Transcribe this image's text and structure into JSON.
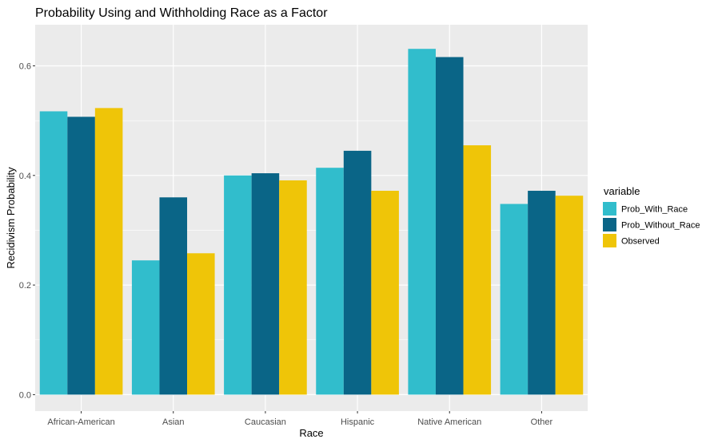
{
  "chart_data": {
    "type": "bar",
    "title": "Probability Using and Withholding Race as a Factor",
    "xlabel": "Race",
    "ylabel": "Recidivism Probability",
    "categories": [
      "African-American",
      "Asian",
      "Caucasian",
      "Hispanic",
      "Native American",
      "Other"
    ],
    "series": [
      {
        "name": "Prob_With_Race",
        "color": "#31BDCC",
        "values": [
          0.517,
          0.245,
          0.4,
          0.414,
          0.631,
          0.348
        ]
      },
      {
        "name": "Prob_Without_Race",
        "color": "#0A6587",
        "values": [
          0.507,
          0.36,
          0.404,
          0.445,
          0.616,
          0.372
        ]
      },
      {
        "name": "Observed",
        "color": "#EFC508",
        "values": [
          0.523,
          0.258,
          0.391,
          0.372,
          0.455,
          0.363
        ]
      }
    ],
    "ylim": [
      -0.03,
      0.675
    ],
    "yticks": [
      "0.0",
      "0.2",
      "0.4",
      "0.6"
    ],
    "ytick_values": [
      0.0,
      0.2,
      0.4,
      0.6
    ],
    "grid": true,
    "legend": {
      "title": "variable",
      "position": "right"
    },
    "panel_background": "#EBEBEB",
    "grid_color": "#FFFFFF"
  }
}
